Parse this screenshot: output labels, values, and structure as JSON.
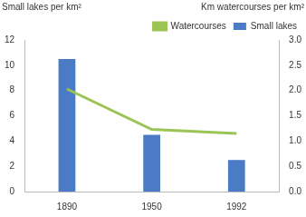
{
  "chart_data": {
    "type": "bar",
    "ylabel": "Small lakes per km²",
    "y2label": "Km watercourses per km²",
    "categories": [
      "1890",
      "1950",
      "1992"
    ],
    "series": [
      {
        "name": "Small lakes",
        "type": "bar",
        "color": "#4a7bc4",
        "values": [
          10.5,
          4.5,
          2.5
        ]
      },
      {
        "name": "Watercourses",
        "type": "line",
        "color": "#9bc455",
        "axis": "y2",
        "values": [
          2.03,
          1.23,
          1.15
        ]
      }
    ],
    "ylim": [
      0,
      12
    ],
    "yticks": [
      0,
      2,
      4,
      6,
      8,
      10,
      12
    ],
    "y2lim": [
      0,
      3
    ],
    "y2ticks": [
      {
        "value": 0,
        "label": "0.0"
      },
      0.5,
      {
        "value": 1,
        "label": "1.0"
      },
      1.5,
      {
        "value": 2,
        "label": "2.0"
      },
      2.5,
      {
        "value": 3,
        "label": "3.0"
      }
    ],
    "grid": false,
    "legend": "top-right"
  }
}
